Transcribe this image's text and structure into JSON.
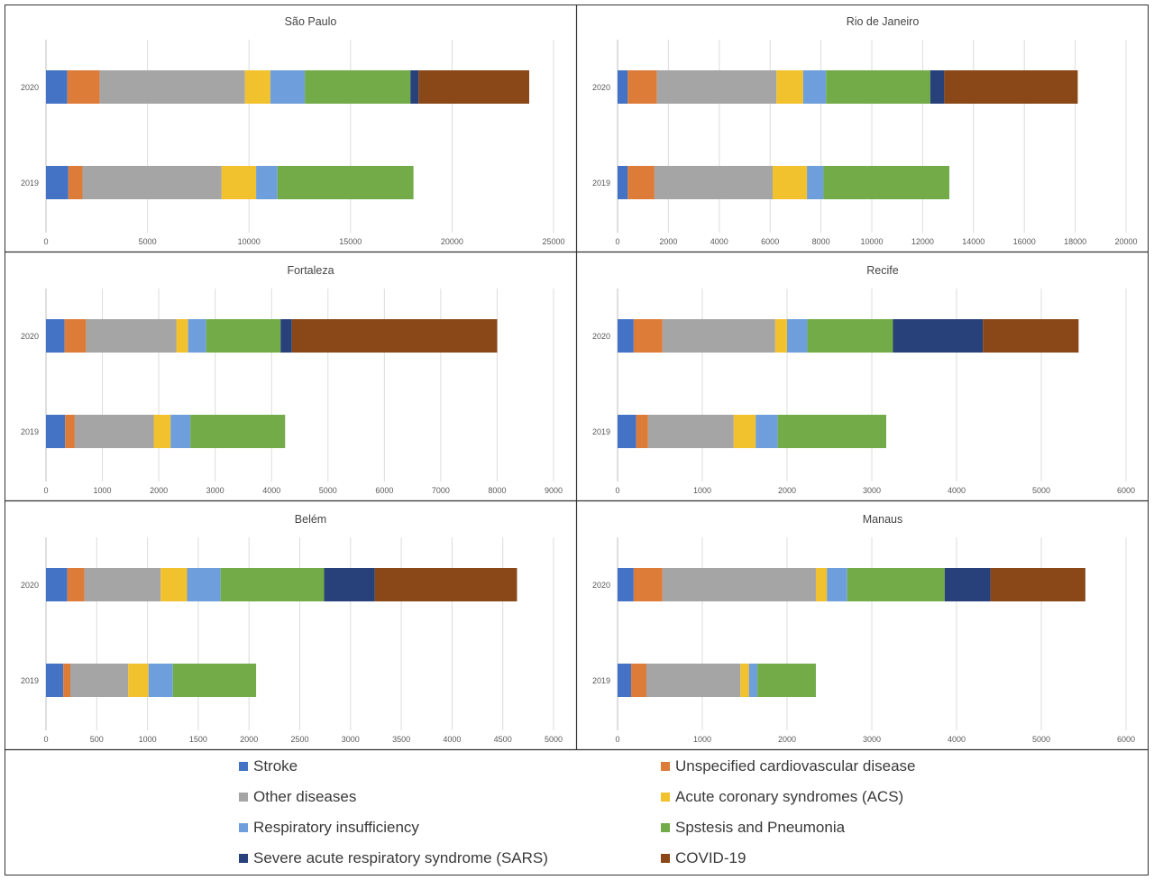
{
  "chart_data": [
    {
      "type": "bar",
      "orientation": "horizontal",
      "stacked": true,
      "title": "São Paulo",
      "categories": [
        "2020",
        "2019"
      ],
      "xlim": [
        0,
        25000
      ],
      "xticks": [
        0,
        5000,
        10000,
        15000,
        20000,
        25000
      ],
      "series": [
        {
          "name": "Stroke",
          "values": [
            1050,
            1100
          ]
        },
        {
          "name": "Unspecified cardiovascular disease",
          "values": [
            1600,
            700
          ]
        },
        {
          "name": "Other diseases",
          "values": [
            7150,
            6850
          ]
        },
        {
          "name": "Acute coronary syndromes (ACS)",
          "values": [
            1250,
            1700
          ]
        },
        {
          "name": "Respiratory insufficiency",
          "values": [
            1700,
            1050
          ]
        },
        {
          "name": "Spstesis and Pneumonia",
          "values": [
            5200,
            6700
          ]
        },
        {
          "name": "Severe acute respiratory syndrome (SARS)",
          "values": [
            400,
            0
          ]
        },
        {
          "name": "COVID-19",
          "values": [
            5450,
            0
          ]
        }
      ]
    },
    {
      "type": "bar",
      "orientation": "horizontal",
      "stacked": true,
      "title": "Rio de Janeiro",
      "categories": [
        "2020",
        "2019"
      ],
      "xlim": [
        0,
        20000
      ],
      "xticks": [
        0,
        2000,
        4000,
        6000,
        8000,
        10000,
        12000,
        14000,
        16000,
        18000,
        20000
      ],
      "series": [
        {
          "name": "Stroke",
          "values": [
            400,
            400
          ]
        },
        {
          "name": "Unspecified cardiovascular disease",
          "values": [
            1150,
            1050
          ]
        },
        {
          "name": "Other diseases",
          "values": [
            4700,
            4650
          ]
        },
        {
          "name": "Acute coronary syndromes (ACS)",
          "values": [
            1050,
            1350
          ]
        },
        {
          "name": "Respiratory insufficiency",
          "values": [
            900,
            650
          ]
        },
        {
          "name": "Spstesis and Pneumonia",
          "values": [
            4100,
            4950
          ]
        },
        {
          "name": "Severe acute respiratory syndrome (SARS)",
          "values": [
            550,
            0
          ]
        },
        {
          "name": "COVID-19",
          "values": [
            5250,
            0
          ]
        }
      ]
    },
    {
      "type": "bar",
      "orientation": "horizontal",
      "stacked": true,
      "title": "Fortaleza",
      "categories": [
        "2020",
        "2019"
      ],
      "xlim": [
        0,
        9000
      ],
      "xticks": [
        0,
        1000,
        2000,
        3000,
        4000,
        5000,
        6000,
        7000,
        8000,
        9000
      ],
      "series": [
        {
          "name": "Stroke",
          "values": [
            330,
            340
          ]
        },
        {
          "name": "Unspecified cardiovascular disease",
          "values": [
            380,
            170
          ]
        },
        {
          "name": "Other diseases",
          "values": [
            1600,
            1400
          ]
        },
        {
          "name": "Acute coronary syndromes (ACS)",
          "values": [
            210,
            300
          ]
        },
        {
          "name": "Respiratory insufficiency",
          "values": [
            320,
            350
          ]
        },
        {
          "name": "Spstesis and Pneumonia",
          "values": [
            1320,
            1680
          ]
        },
        {
          "name": "Severe acute respiratory syndrome (SARS)",
          "values": [
            200,
            0
          ]
        },
        {
          "name": "COVID-19",
          "values": [
            3640,
            0
          ]
        }
      ]
    },
    {
      "type": "bar",
      "orientation": "horizontal",
      "stacked": true,
      "title": "Recife",
      "categories": [
        "2020",
        "2019"
      ],
      "xlim": [
        0,
        6000
      ],
      "xticks": [
        0,
        1000,
        2000,
        3000,
        4000,
        5000,
        6000
      ],
      "series": [
        {
          "name": "Stroke",
          "values": [
            190,
            220
          ]
        },
        {
          "name": "Unspecified cardiovascular disease",
          "values": [
            340,
            140
          ]
        },
        {
          "name": "Other diseases",
          "values": [
            1330,
            1010
          ]
        },
        {
          "name": "Acute coronary syndromes (ACS)",
          "values": [
            140,
            260
          ]
        },
        {
          "name": "Respiratory insufficiency",
          "values": [
            240,
            260
          ]
        },
        {
          "name": "Spstesis and Pneumonia",
          "values": [
            1010,
            1280
          ]
        },
        {
          "name": "Severe acute respiratory syndrome (SARS)",
          "values": [
            1060,
            0
          ]
        },
        {
          "name": "COVID-19",
          "values": [
            1130,
            0
          ]
        }
      ]
    },
    {
      "type": "bar",
      "orientation": "horizontal",
      "stacked": true,
      "title": "Belém",
      "categories": [
        "2020",
        "2019"
      ],
      "xlim": [
        0,
        5000
      ],
      "xticks": [
        0,
        500,
        1000,
        1500,
        2000,
        2500,
        3000,
        3500,
        4000,
        4500,
        5000
      ],
      "series": [
        {
          "name": "Stroke",
          "values": [
            210,
            170
          ]
        },
        {
          "name": "Unspecified cardiovascular disease",
          "values": [
            170,
            70
          ]
        },
        {
          "name": "Other diseases",
          "values": [
            750,
            570
          ]
        },
        {
          "name": "Acute coronary syndromes (ACS)",
          "values": [
            260,
            200
          ]
        },
        {
          "name": "Respiratory insufficiency",
          "values": [
            330,
            240
          ]
        },
        {
          "name": "Spstesis and Pneumonia",
          "values": [
            1020,
            820
          ]
        },
        {
          "name": "Severe acute respiratory syndrome (SARS)",
          "values": [
            500,
            0
          ]
        },
        {
          "name": "COVID-19",
          "values": [
            1400,
            0
          ]
        }
      ]
    },
    {
      "type": "bar",
      "orientation": "horizontal",
      "stacked": true,
      "title": "Manaus",
      "categories": [
        "2020",
        "2019"
      ],
      "xlim": [
        0,
        6000
      ],
      "xticks": [
        0,
        1000,
        2000,
        3000,
        4000,
        5000,
        6000
      ],
      "series": [
        {
          "name": "Stroke",
          "values": [
            190,
            160
          ]
        },
        {
          "name": "Unspecified cardiovascular disease",
          "values": [
            340,
            180
          ]
        },
        {
          "name": "Other diseases",
          "values": [
            1810,
            1110
          ]
        },
        {
          "name": "Acute coronary syndromes (ACS)",
          "values": [
            130,
            100
          ]
        },
        {
          "name": "Respiratory insufficiency",
          "values": [
            240,
            100
          ]
        },
        {
          "name": "Spstesis and Pneumonia",
          "values": [
            1150,
            690
          ]
        },
        {
          "name": "Severe acute respiratory syndrome (SARS)",
          "values": [
            540,
            0
          ]
        },
        {
          "name": "COVID-19",
          "values": [
            1120,
            0
          ]
        }
      ]
    }
  ],
  "legend": [
    {
      "name": "Stroke",
      "color": "#4472c4"
    },
    {
      "name": "Unspecified cardiovascular disease",
      "color": "#dd7b38"
    },
    {
      "name": "Other diseases",
      "color": "#a5a5a5"
    },
    {
      "name": "Acute coronary syndromes (ACS)",
      "color": "#f2c12e"
    },
    {
      "name": "Respiratory insufficiency",
      "color": "#6e9fdc"
    },
    {
      "name": "Spstesis and Pneumonia",
      "color": "#72ab47"
    },
    {
      "name": "Severe acute respiratory syndrome (SARS)",
      "color": "#28417a"
    },
    {
      "name": "COVID-19",
      "color": "#8a4718"
    }
  ],
  "colors": {
    "Stroke": "#4472c4",
    "Unspecified cardiovascular disease": "#dd7b38",
    "Other diseases": "#a5a5a5",
    "Acute coronary syndromes (ACS)": "#f2c12e",
    "Respiratory insufficiency": "#6e9fdc",
    "Spstesis and Pneumonia": "#72ab47",
    "Severe acute respiratory syndrome (SARS)": "#28417a",
    "COVID-19": "#8a4718"
  }
}
